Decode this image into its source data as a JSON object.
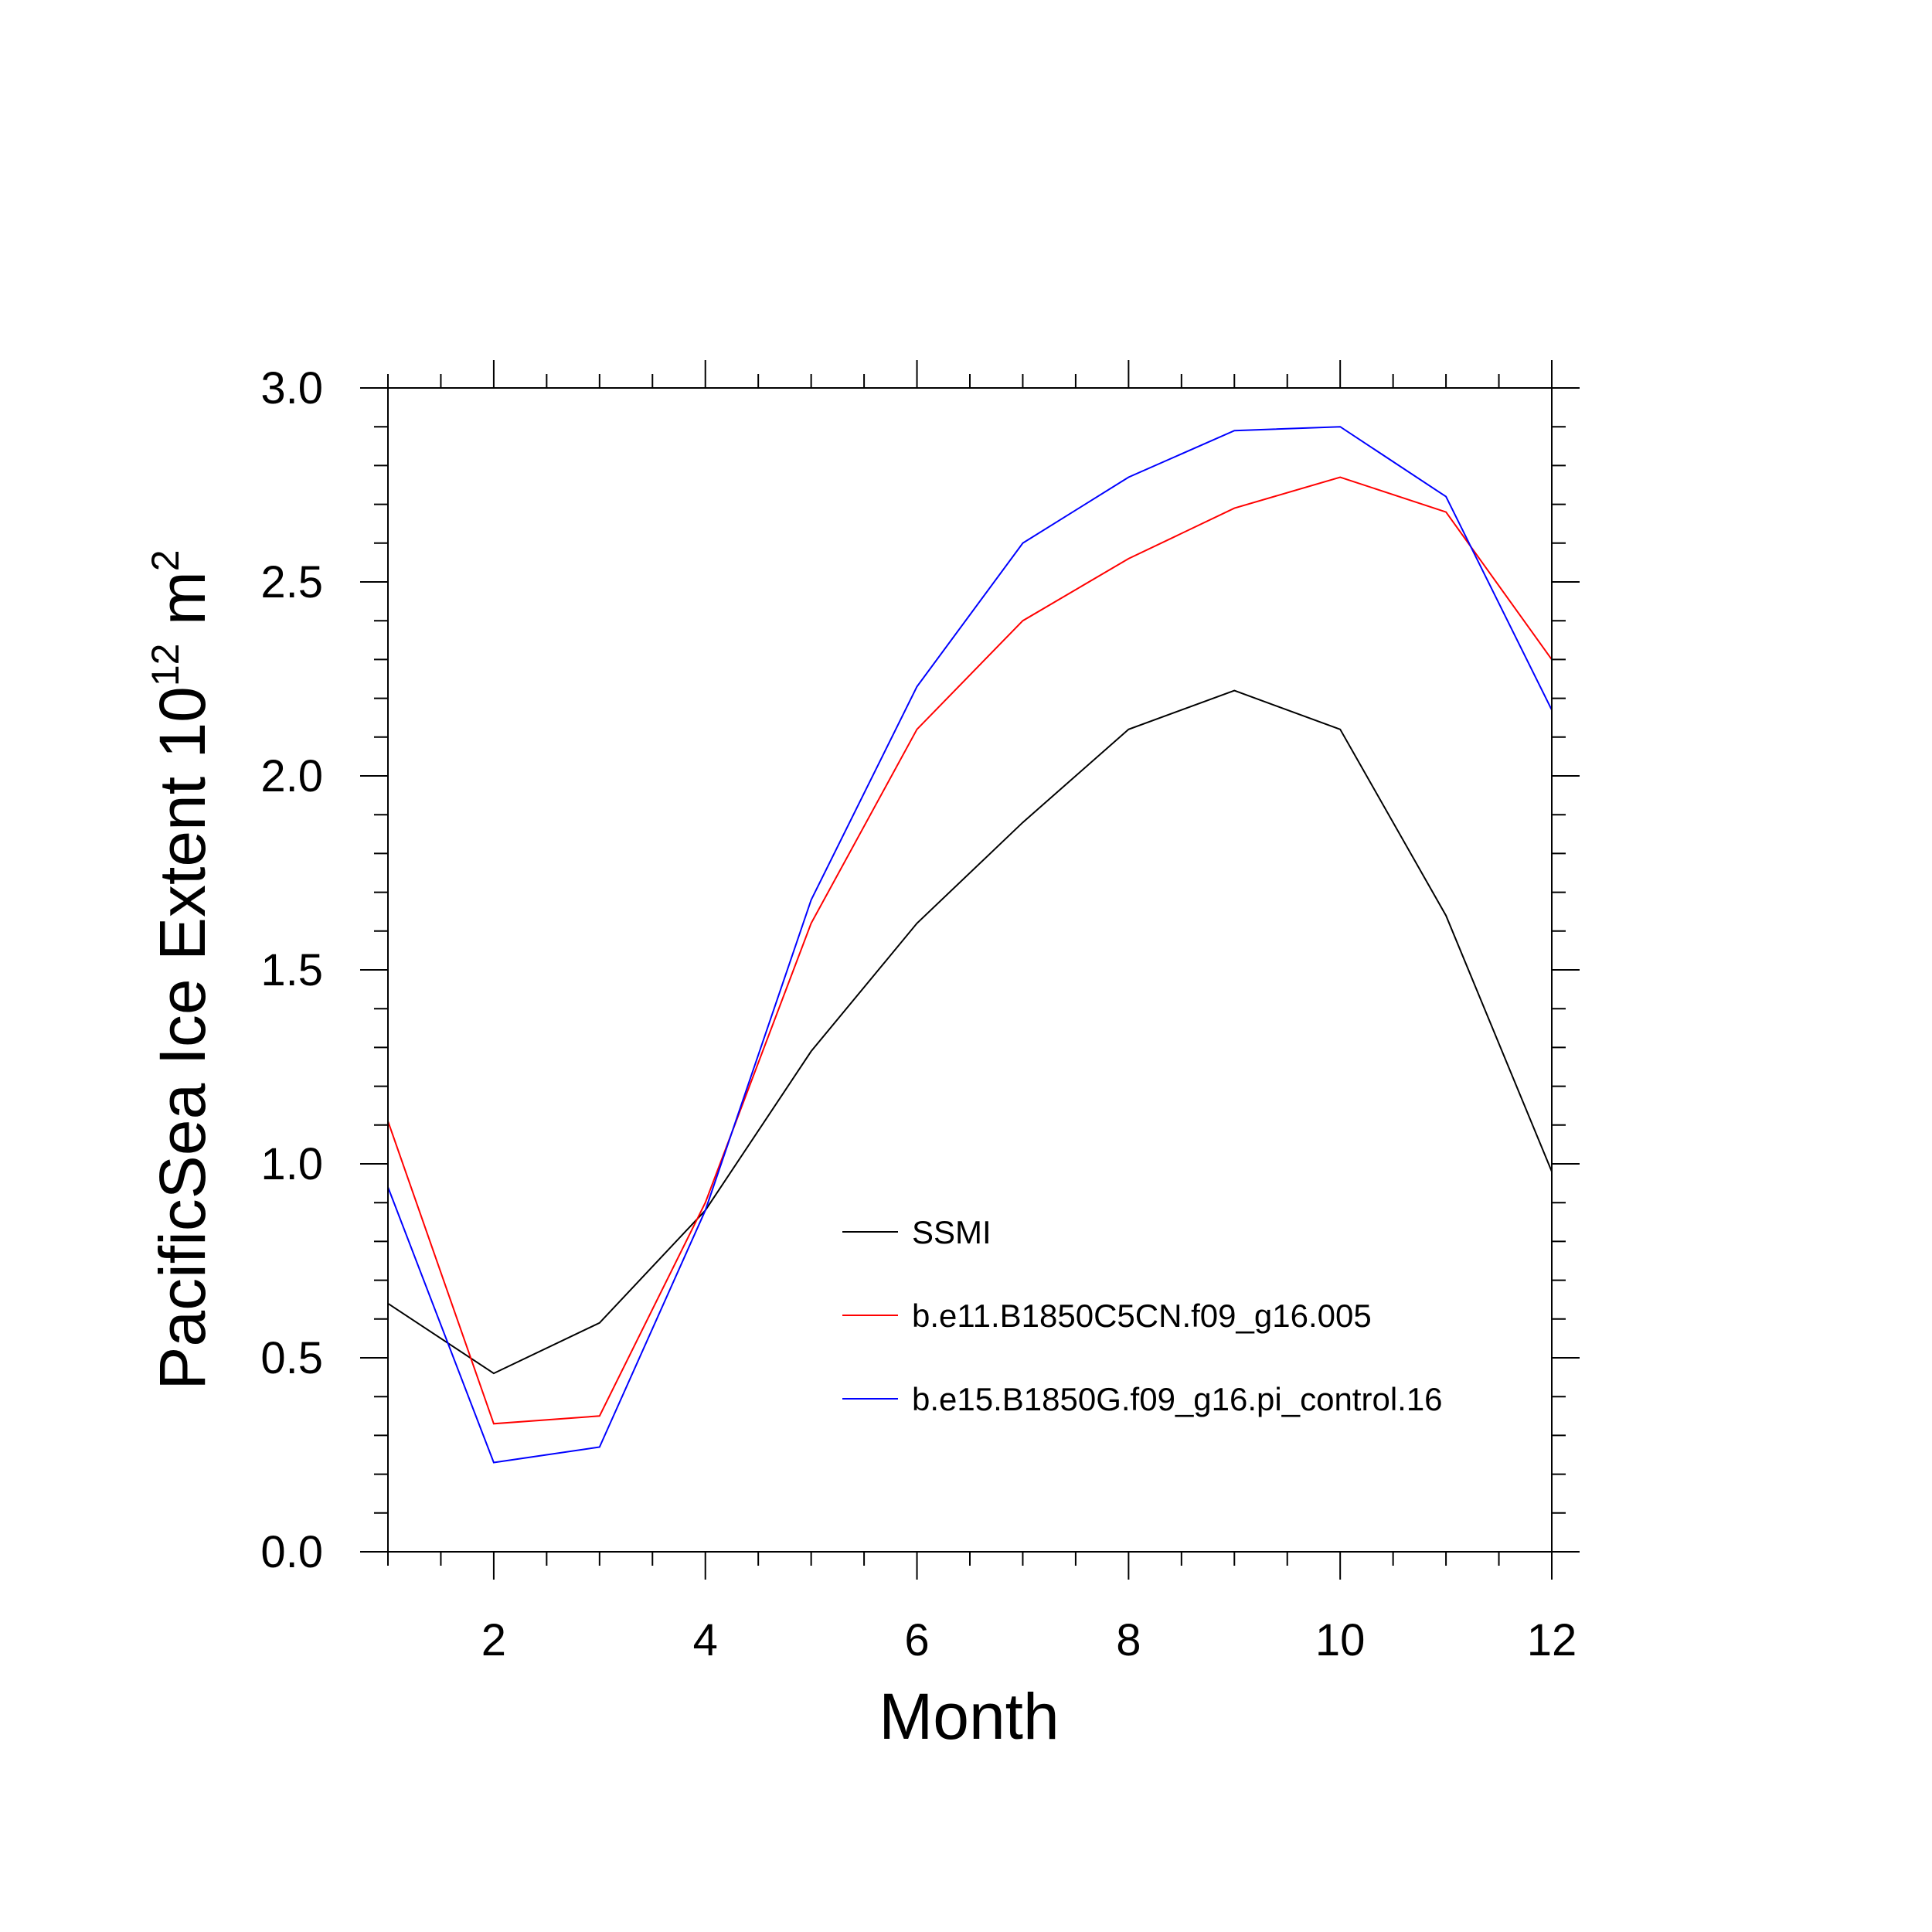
{
  "chart_data": {
    "type": "line",
    "xlabel": "Month",
    "ylabel": {
      "prefix": "PacificSea Ice Extent 10",
      "exponent": "12",
      "unit": " m",
      "unit_exponent": "2"
    },
    "xlim": [
      1,
      12
    ],
    "ylim": [
      0,
      3
    ],
    "x": [
      1,
      2,
      3,
      4,
      5,
      6,
      7,
      8,
      9,
      10,
      11,
      12
    ],
    "x_ticks": [
      2,
      4,
      6,
      8,
      10,
      12
    ],
    "y_ticks": [
      "0.0",
      "0.5",
      "1.0",
      "1.5",
      "2.0",
      "2.5",
      "3.0"
    ],
    "grid": false,
    "legend_position": "lower-right inside",
    "series": [
      {
        "name": "SSMI",
        "color": "#000000",
        "values": [
          0.64,
          0.46,
          0.59,
          0.88,
          1.29,
          1.62,
          1.88,
          2.12,
          2.22,
          2.12,
          1.64,
          0.98
        ]
      },
      {
        "name": "b.e11.B1850C5CN.f09_g16.005",
        "color": "#ff0000",
        "values": [
          1.11,
          0.33,
          0.35,
          0.9,
          1.62,
          2.12,
          2.4,
          2.56,
          2.69,
          2.77,
          2.68,
          2.3
        ]
      },
      {
        "name": "b.e15.B1850G.f09_g16.pi_control.16",
        "color": "#0000ff",
        "values": [
          0.94,
          0.23,
          0.27,
          0.88,
          1.68,
          2.23,
          2.6,
          2.77,
          2.89,
          2.9,
          2.72,
          2.17
        ]
      }
    ]
  }
}
